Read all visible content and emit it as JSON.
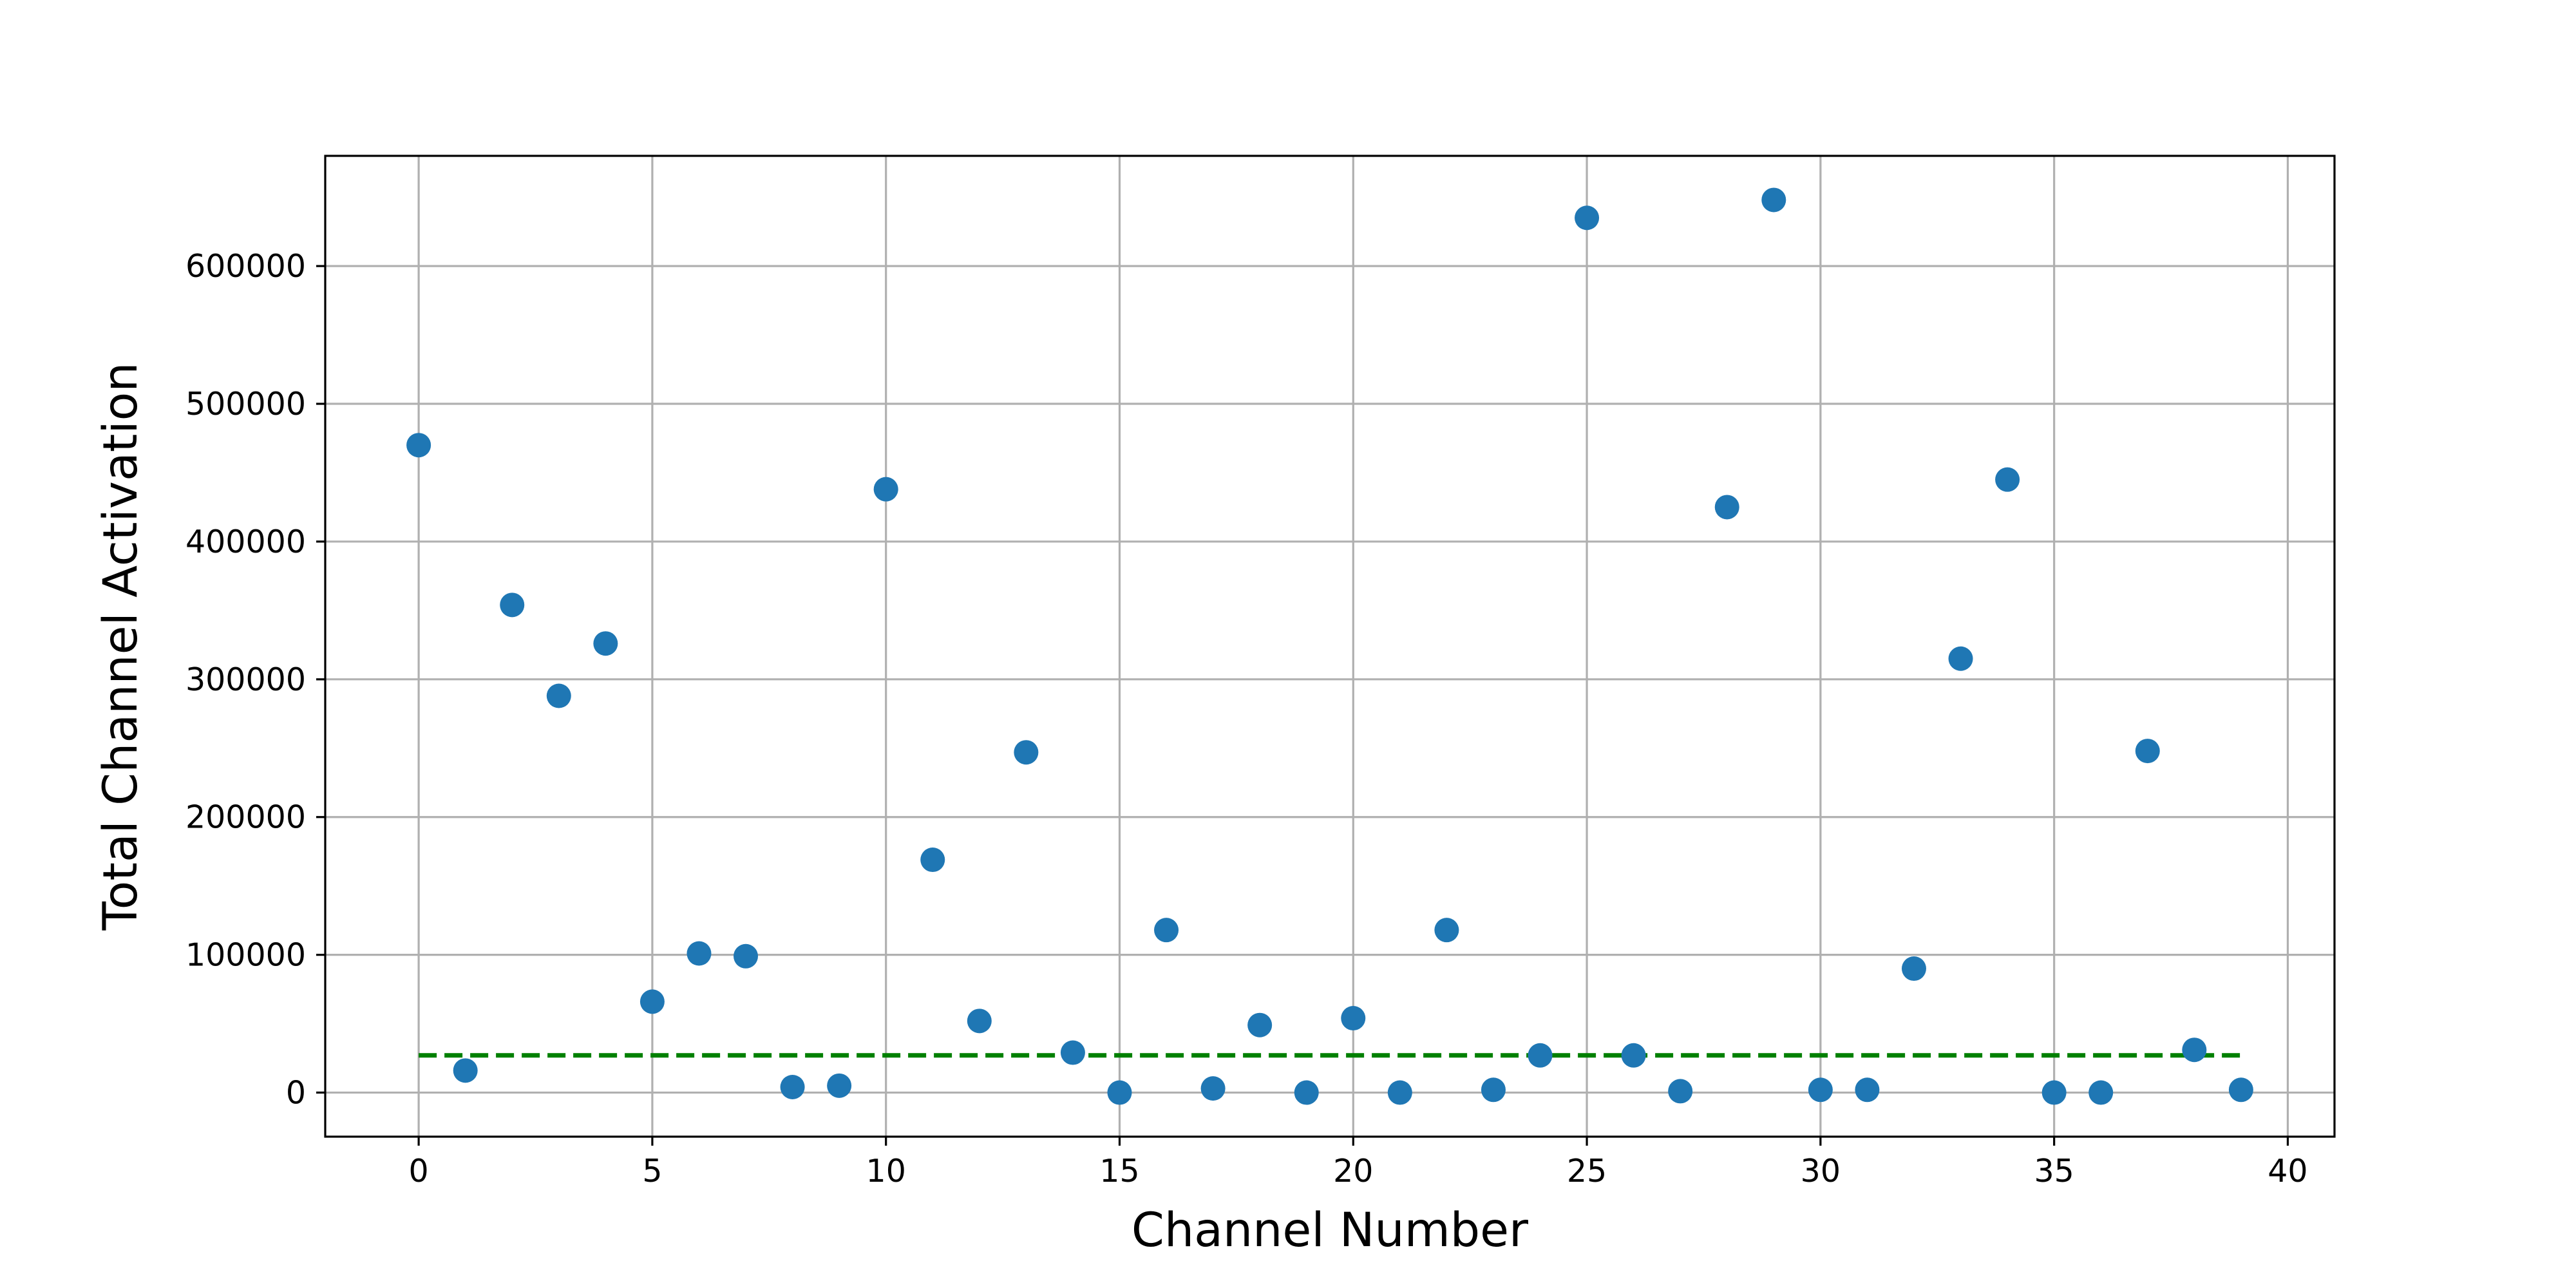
{
  "chart_data": {
    "type": "scatter",
    "title": "",
    "xlabel": "Channel Number",
    "ylabel": "Total Channel Activation",
    "xlim": [
      -2,
      41
    ],
    "ylim": [
      -32000,
      680000
    ],
    "xticks": [
      0,
      5,
      10,
      15,
      20,
      25,
      30,
      35,
      40
    ],
    "xtick_labels": [
      "0",
      "5",
      "10",
      "15",
      "20",
      "25",
      "30",
      "35",
      "40"
    ],
    "yticks": [
      0,
      100000,
      200000,
      300000,
      400000,
      500000,
      600000
    ],
    "ytick_labels": [
      "0",
      "100000",
      "200000",
      "300000",
      "400000",
      "500000",
      "600000"
    ],
    "grid": true,
    "legend": "none",
    "series": [
      {
        "color": "#1f77b4",
        "marker": "circle",
        "x": [
          0,
          1,
          2,
          3,
          4,
          5,
          6,
          7,
          8,
          9,
          10,
          11,
          12,
          13,
          14,
          15,
          16,
          17,
          18,
          19,
          20,
          21,
          22,
          23,
          24,
          25,
          26,
          27,
          28,
          29,
          30,
          31,
          32,
          33,
          34,
          35,
          36,
          37,
          38,
          39
        ],
        "y": [
          470000,
          16000,
          354000,
          288000,
          326000,
          66000,
          101000,
          99000,
          4000,
          5000,
          438000,
          169000,
          52000,
          247000,
          29000,
          0,
          118000,
          3000,
          49000,
          0,
          54000,
          0,
          118000,
          2000,
          27000,
          635000,
          27000,
          1000,
          425000,
          648000,
          2000,
          2000,
          90000,
          315000,
          445000,
          0,
          0,
          248000,
          31000,
          2000
        ]
      }
    ],
    "threshold": {
      "y": 27000,
      "x_start": 0,
      "x_end": 39,
      "color": "#008000",
      "style": "dashed"
    }
  }
}
